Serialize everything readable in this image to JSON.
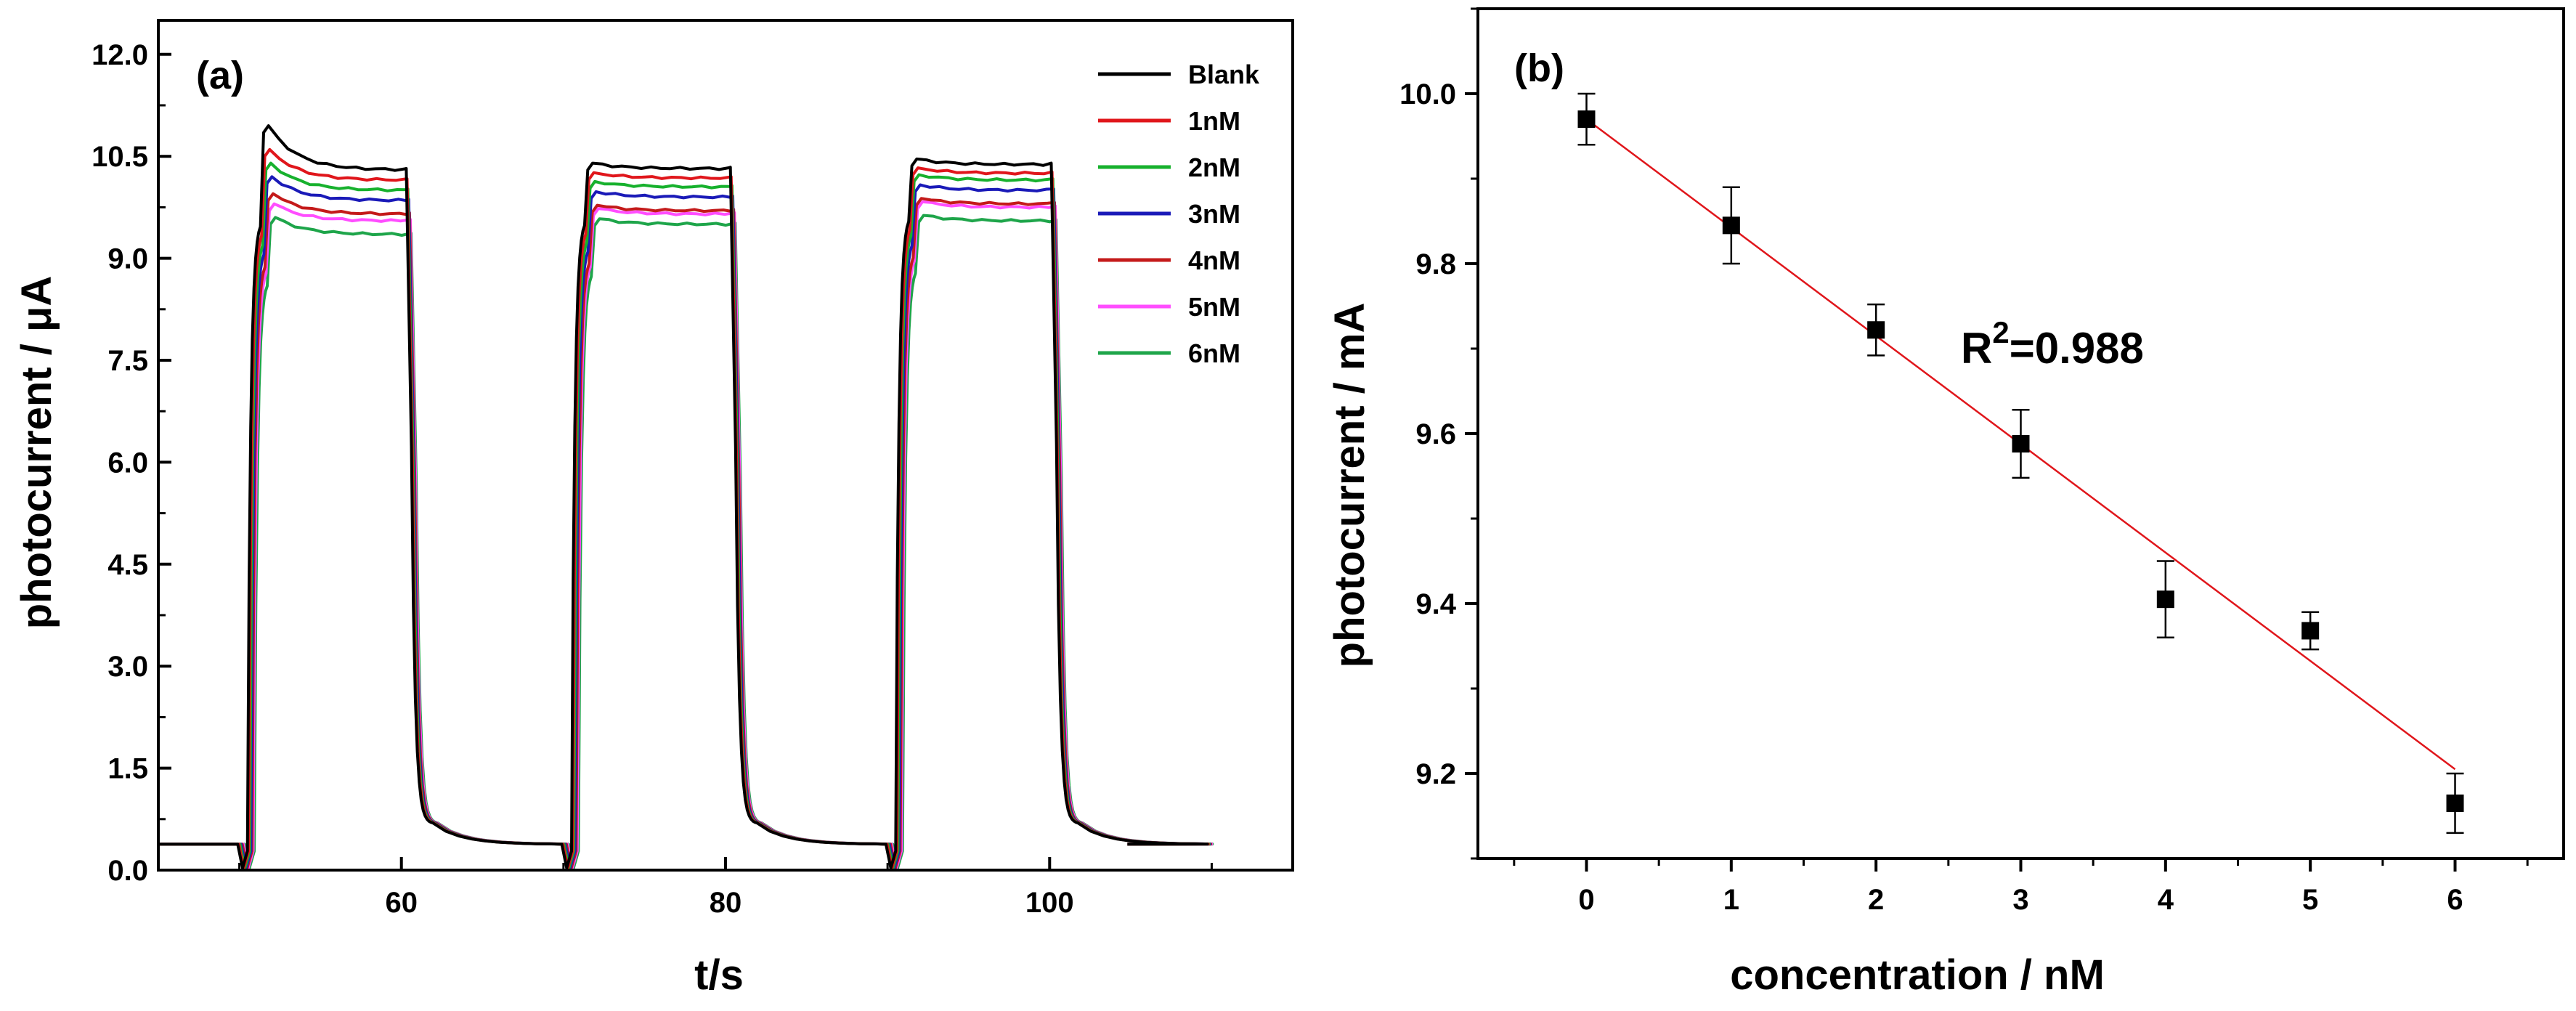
{
  "chart_data": [
    {
      "panel": "(a)",
      "type": "line",
      "xlabel": "t/s",
      "ylabel": "photocurrent / μA",
      "xlim": [
        45,
        115
      ],
      "ylim": [
        0,
        12.5
      ],
      "x_ticks": [
        60,
        80,
        100
      ],
      "x_tick_labels": [
        "60",
        "80",
        "100"
      ],
      "y_ticks": [
        0,
        1.5,
        3,
        4.5,
        6,
        7.5,
        9,
        10.5,
        12
      ],
      "y_tick_labels": [
        "0.0",
        "1.5",
        "3.0",
        "4.5",
        "6.0",
        "7.5",
        "9.0",
        "10.5",
        "12.0"
      ],
      "light_on_off_cycles": [
        {
          "on": 50.5,
          "off": 60.5
        },
        {
          "on": 70.5,
          "off": 80.5
        },
        {
          "on": 90.5,
          "off": 100.3
        }
      ],
      "baseline": 0.38,
      "series": [
        {
          "name": "Blank",
          "color": "#000000",
          "peak": 10.95,
          "plateaus": [
            10.3,
            10.32,
            10.38
          ]
        },
        {
          "name": "1nM",
          "color": "#e0161b",
          "peak": 10.6,
          "plateaus": [
            10.15,
            10.18,
            10.25
          ]
        },
        {
          "name": "2nM",
          "color": "#17b12d",
          "peak": 10.4,
          "plateaus": [
            10.0,
            10.05,
            10.15
          ]
        },
        {
          "name": "3nM",
          "color": "#1a1ab8",
          "peak": 10.2,
          "plateaus": [
            9.85,
            9.9,
            10.0
          ]
        },
        {
          "name": "4nM",
          "color": "#c41a1a",
          "peak": 9.95,
          "plateaus": [
            9.65,
            9.7,
            9.8
          ]
        },
        {
          "name": "5nM",
          "color": "#ff4dff",
          "peak": 9.8,
          "plateaus": [
            9.55,
            9.65,
            9.75
          ]
        },
        {
          "name": "6nM",
          "color": "#1ea54a",
          "peak": 9.6,
          "plateaus": [
            9.35,
            9.5,
            9.55
          ]
        }
      ]
    },
    {
      "panel": "(b)",
      "type": "scatter",
      "xlabel": "concentration / nM",
      "ylabel": "photocurrent / mA",
      "xlim": [
        -0.75,
        6.75
      ],
      "ylim": [
        9.1,
        10.1
      ],
      "x_ticks": [
        0,
        1,
        2,
        3,
        4,
        5,
        6
      ],
      "x_tick_labels": [
        "0",
        "1",
        "2",
        "3",
        "4",
        "5",
        "6"
      ],
      "y_ticks": [
        9.2,
        9.4,
        9.6,
        9.8,
        10.0
      ],
      "y_tick_labels": [
        "9.2",
        "9.4",
        "9.6",
        "9.8",
        "10.0"
      ],
      "x": [
        0,
        1,
        2,
        3,
        4,
        5,
        6
      ],
      "y": [
        9.97,
        9.845,
        9.722,
        9.588,
        9.405,
        9.368,
        9.165
      ],
      "errors": [
        0.03,
        0.045,
        0.03,
        0.04,
        0.045,
        0.022,
        0.035
      ],
      "fit": {
        "x": [
          0,
          6
        ],
        "y": [
          9.97,
          9.205
        ],
        "color": "#e0161b"
      },
      "annotation": {
        "base": "R",
        "superscript": "2",
        "value": "=0.988"
      }
    }
  ]
}
